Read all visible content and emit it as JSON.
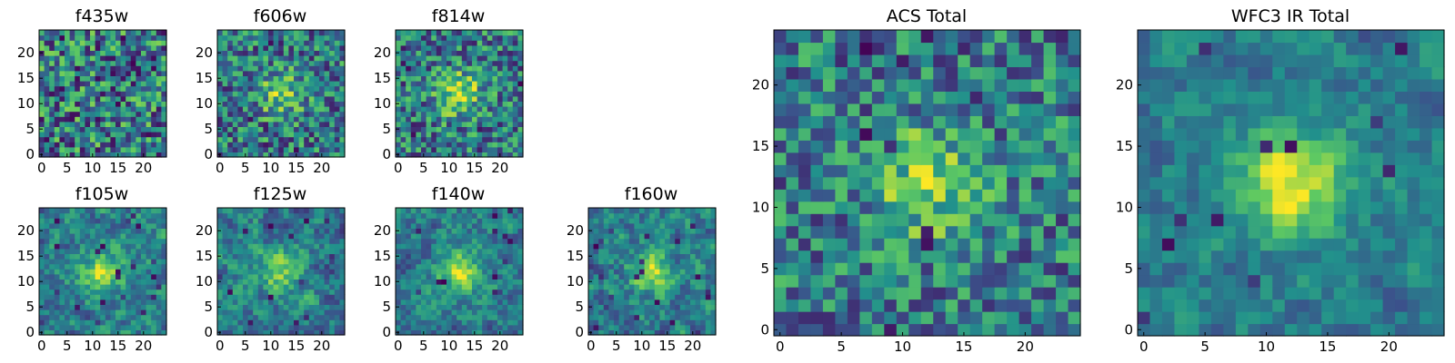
{
  "figure": {
    "colormap": "viridis",
    "colormap_stops": [
      "#440154",
      "#3b528b",
      "#21918c",
      "#5ec962",
      "#fde725"
    ],
    "frame_color": "#000000",
    "background": "#ffffff"
  },
  "chart_data": [
    {
      "type": "heatmap",
      "title": "f435w",
      "grid_size": 25,
      "x_ticks": [
        0,
        5,
        10,
        15,
        20
      ],
      "y_ticks": [
        0,
        5,
        10,
        15,
        20
      ],
      "texture": "noise",
      "peak_strength": 0.0,
      "noise_level": 0.6,
      "dark_fraction": 0.05,
      "seed": 11
    },
    {
      "type": "heatmap",
      "title": "f606w",
      "grid_size": 25,
      "x_ticks": [
        0,
        5,
        10,
        15,
        20
      ],
      "y_ticks": [
        0,
        5,
        10,
        15,
        20
      ],
      "texture": "noise",
      "peak_strength": 0.35,
      "noise_level": 0.5,
      "dark_fraction": 0.03,
      "seed": 23
    },
    {
      "type": "heatmap",
      "title": "f814w",
      "grid_size": 25,
      "x_ticks": [
        0,
        5,
        10,
        15,
        20
      ],
      "y_ticks": [
        0,
        5,
        10,
        15,
        20
      ],
      "texture": "noise",
      "peak_strength": 0.45,
      "noise_level": 0.5,
      "dark_fraction": 0.02,
      "seed": 37
    },
    {
      "type": "heatmap",
      "title": "f105w",
      "grid_size": 25,
      "x_ticks": [
        0,
        5,
        10,
        15,
        20
      ],
      "y_ticks": [
        0,
        5,
        10,
        15,
        20
      ],
      "texture": "smooth",
      "peak_strength": 0.45,
      "noise_level": 0.55,
      "dark_fraction": 0.03,
      "seed": 41
    },
    {
      "type": "heatmap",
      "title": "f125w",
      "grid_size": 25,
      "x_ticks": [
        0,
        5,
        10,
        15,
        20
      ],
      "y_ticks": [
        0,
        5,
        10,
        15,
        20
      ],
      "texture": "smooth",
      "peak_strength": 0.35,
      "noise_level": 0.55,
      "dark_fraction": 0.03,
      "seed": 53
    },
    {
      "type": "heatmap",
      "title": "f140w",
      "grid_size": 25,
      "x_ticks": [
        0,
        5,
        10,
        15,
        20
      ],
      "y_ticks": [
        0,
        5,
        10,
        15,
        20
      ],
      "texture": "smooth",
      "peak_strength": 0.45,
      "noise_level": 0.5,
      "dark_fraction": 0.02,
      "seed": 67
    },
    {
      "type": "heatmap",
      "title": "f160w",
      "grid_size": 25,
      "x_ticks": [
        0,
        5,
        10,
        15,
        20
      ],
      "y_ticks": [
        0,
        5,
        10,
        15,
        20
      ],
      "texture": "smooth",
      "peak_strength": 0.45,
      "noise_level": 0.55,
      "dark_fraction": 0.04,
      "seed": 79
    },
    {
      "type": "heatmap",
      "title": "ACS Total",
      "grid_size": 25,
      "x_ticks": [
        0,
        5,
        10,
        15,
        20
      ],
      "y_ticks": [
        0,
        5,
        10,
        15,
        20
      ],
      "texture": "noise",
      "peak_strength": 0.4,
      "noise_level": 0.45,
      "dark_fraction": 0.03,
      "seed": 97
    },
    {
      "type": "heatmap",
      "title": "WFC3 IR Total",
      "grid_size": 25,
      "x_ticks": [
        0,
        5,
        10,
        15,
        20
      ],
      "y_ticks": [
        0,
        5,
        10,
        15,
        20
      ],
      "texture": "smooth",
      "peak_strength": 0.55,
      "noise_level": 0.4,
      "dark_fraction": 0.02,
      "seed": 113
    }
  ]
}
